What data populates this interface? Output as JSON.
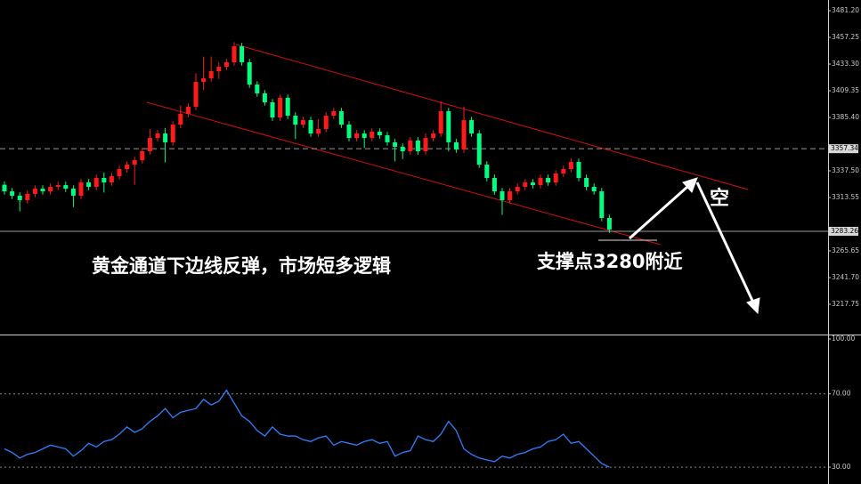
{
  "chart_data": [
    {
      "type": "candlestick",
      "open": [
        3325.0,
        3319.1,
        3315.2,
        3311.2,
        3316.8,
        3321.5,
        3319.1,
        3323.1,
        3324.7,
        3321.5,
        3315.2,
        3327.1,
        3323.1,
        3331.1,
        3327.1,
        3332.7,
        3339.1,
        3343.1,
        3347.1,
        3355.1,
        3367.0,
        3371.0,
        3363.1,
        3379.0,
        3388.6,
        3395.0,
        3417.3,
        3420.5,
        3426.9,
        3430.9,
        3434.9,
        3449.3,
        3434.9,
        3414.9,
        3407.0,
        3399.0,
        3385.4,
        3403.0,
        3387.0,
        3379.0,
        3383.0,
        3371.0,
        3375.0,
        3387.0,
        3391.0,
        3379.0,
        3367.0,
        3371.0,
        3367.0,
        3372.6,
        3369.4,
        3363.1,
        3359.1,
        3355.1,
        3364.7,
        3355.1,
        3367.0,
        3371.0,
        3391.0,
        3363.1,
        3356.7,
        3383.0,
        3371.0,
        3343.1,
        3331.1,
        3319.1,
        3311.2,
        3319.1,
        3323.1,
        3327.1,
        3324.7,
        3331.1,
        3327.1,
        3335.1,
        3339.1,
        3345.5,
        3331.1,
        3323.1,
        3319.1,
        3295.2
      ],
      "high": [
        3328.0,
        3322.1,
        3318.2,
        3319.8,
        3324.5,
        3324.5,
        3326.1,
        3327.7,
        3327.7,
        3324.5,
        3330.1,
        3330.1,
        3334.1,
        3336.0,
        3335.7,
        3342.1,
        3346.1,
        3350.1,
        3358.1,
        3375.0,
        3374.0,
        3376.0,
        3382.0,
        3396.0,
        3398.0,
        3425.0,
        3440.0,
        3440.0,
        3435.0,
        3438.0,
        3453.0,
        3452.3,
        3437.9,
        3417.9,
        3410.0,
        3402.0,
        3406.0,
        3406.0,
        3390.0,
        3386.0,
        3386.0,
        3384.0,
        3390.0,
        3394.0,
        3394.0,
        3382.0,
        3374.0,
        3374.0,
        3375.6,
        3375.6,
        3372.4,
        3366.1,
        3362.1,
        3367.7,
        3367.7,
        3371.0,
        3374.0,
        3400.0,
        3394.0,
        3366.1,
        3395.0,
        3386.0,
        3374.0,
        3346.1,
        3334.1,
        3322.1,
        3322.1,
        3326.1,
        3330.1,
        3330.1,
        3334.1,
        3334.1,
        3338.1,
        3342.1,
        3348.5,
        3348.5,
        3334.1,
        3326.1,
        3322.1,
        3298.2
      ],
      "low": [
        3316.1,
        3312.2,
        3301.0,
        3308.2,
        3313.8,
        3316.1,
        3316.1,
        3320.1,
        3318.5,
        3305.0,
        3312.2,
        3320.1,
        3320.1,
        3318.0,
        3324.1,
        3329.7,
        3336.1,
        3325.0,
        3344.1,
        3352.1,
        3364.0,
        3345.0,
        3360.1,
        3376.0,
        3385.6,
        3392.0,
        3410.0,
        3417.5,
        3420.0,
        3427.9,
        3431.9,
        3431.9,
        3411.9,
        3404.0,
        3396.0,
        3382.4,
        3382.4,
        3384.0,
        3366.0,
        3376.0,
        3368.0,
        3368.0,
        3372.0,
        3384.0,
        3376.0,
        3364.0,
        3364.0,
        3358.0,
        3364.0,
        3366.4,
        3360.1,
        3346.0,
        3348.0,
        3352.1,
        3352.1,
        3352.1,
        3364.0,
        3368.0,
        3355.0,
        3353.7,
        3353.7,
        3368.0,
        3340.1,
        3328.1,
        3316.1,
        3298.0,
        3308.2,
        3316.1,
        3320.1,
        3321.7,
        3321.7,
        3324.1,
        3324.1,
        3332.1,
        3336.1,
        3328.1,
        3320.1,
        3316.1,
        3292.2,
        3281.8
      ],
      "close": [
        3319.1,
        3315.2,
        3311.2,
        3316.8,
        3321.5,
        3319.1,
        3323.1,
        3324.7,
        3321.5,
        3315.2,
        3327.1,
        3323.1,
        3331.1,
        3327.1,
        3332.7,
        3339.1,
        3343.1,
        3347.1,
        3355.1,
        3367.0,
        3371.0,
        3363.1,
        3379.0,
        3388.6,
        3395.0,
        3417.3,
        3420.5,
        3426.9,
        3430.9,
        3434.9,
        3449.3,
        3434.9,
        3414.9,
        3407.0,
        3399.0,
        3385.4,
        3403.0,
        3387.0,
        3379.0,
        3383.0,
        3371.0,
        3375.0,
        3387.0,
        3391.0,
        3379.0,
        3367.0,
        3371.0,
        3367.0,
        3372.6,
        3369.4,
        3363.1,
        3359.1,
        3355.1,
        3364.7,
        3355.1,
        3367.0,
        3371.0,
        3391.0,
        3363.1,
        3356.7,
        3383.0,
        3371.0,
        3343.1,
        3331.1,
        3319.1,
        3311.2,
        3319.1,
        3323.1,
        3327.1,
        3324.7,
        3331.1,
        3327.1,
        3335.1,
        3339.1,
        3345.5,
        3331.1,
        3323.1,
        3319.1,
        3295.2,
        3284.8
      ],
      "up_color": "#ff1a1a",
      "down_color": "#00ff80",
      "ylim": [
        3190.6,
        3490.8
      ],
      "yticks": [
        {
          "value": 3481.2,
          "label": "3481.20"
        },
        {
          "value": 3457.25,
          "label": "3457.25"
        },
        {
          "value": 3433.3,
          "label": "3433.30"
        },
        {
          "value": 3409.35,
          "label": "3409.35"
        },
        {
          "value": 3385.4,
          "label": "3385.40"
        },
        {
          "value": 3337.5,
          "label": "3337.50"
        },
        {
          "value": 3313.55,
          "label": "3313.55"
        },
        {
          "value": 3265.65,
          "label": "3265.65"
        },
        {
          "value": 3241.7,
          "label": "3241.70"
        },
        {
          "value": 3217.75,
          "label": "3217.75"
        }
      ],
      "price_lines": [
        {
          "value": 3357.34,
          "label": "3357.34",
          "dashed": true
        },
        {
          "value": 3283.26,
          "label": "3283.26",
          "dashed": false
        }
      ],
      "annotations": [
        "黄金通道下边线反弹，市场短多逻辑",
        "支撑点3280附近",
        "空"
      ]
    },
    {
      "type": "line",
      "series": [
        {
          "color": "#2f7fff",
          "values": [
            40,
            38,
            35,
            37,
            38,
            40,
            42,
            41,
            40,
            36,
            39,
            43,
            41,
            44,
            45,
            48,
            52,
            49,
            51,
            55,
            58,
            62,
            57,
            60,
            61,
            62,
            67,
            64,
            66,
            72,
            65,
            58,
            55,
            50,
            47,
            52,
            48,
            47,
            47,
            45,
            44,
            46,
            47,
            42,
            44,
            43,
            42,
            44,
            45,
            43,
            44,
            36,
            38,
            39,
            47,
            45,
            44,
            48,
            55,
            50,
            40,
            37,
            35,
            34,
            33,
            36,
            35,
            37,
            38,
            40,
            41,
            44,
            45,
            48,
            43,
            44,
            40,
            36,
            32,
            30
          ]
        }
      ],
      "ylim": [
        20.8,
        100
      ],
      "yticks": [
        {
          "value": 100,
          "label": "100.00"
        },
        {
          "value": 70,
          "label": "70.00"
        },
        {
          "value": 30,
          "label": "30.00"
        }
      ]
    }
  ]
}
